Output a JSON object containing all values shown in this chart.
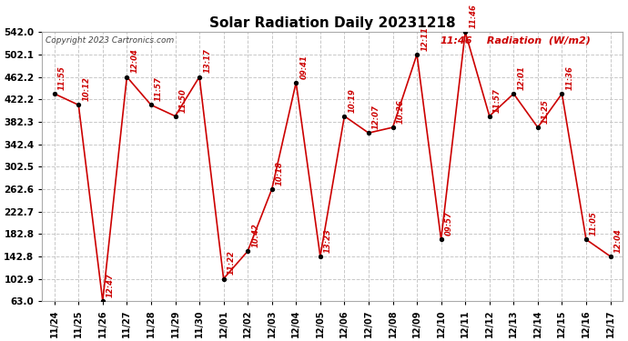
{
  "title": "Solar Radiation Daily 20231218",
  "copyright": "Copyright 2023 Cartronics.com",
  "legend_time": "11:46",
  "legend_text": " Radiation  (W/m2)",
  "background_color": "#ffffff",
  "grid_color": "#c8c8c8",
  "line_color": "#cc0000",
  "marker_color": "#000000",
  "label_color": "#cc0000",
  "yticks": [
    63.0,
    102.9,
    142.8,
    182.8,
    222.7,
    262.6,
    302.5,
    342.4,
    382.3,
    422.2,
    462.2,
    502.1,
    542.0
  ],
  "dates": [
    "11/24",
    "11/25",
    "11/26",
    "11/27",
    "11/28",
    "11/29",
    "11/30",
    "12/01",
    "12/02",
    "12/03",
    "12/04",
    "12/05",
    "12/06",
    "12/07",
    "12/08",
    "12/09",
    "12/10",
    "12/11",
    "12/12",
    "12/13",
    "12/14",
    "12/15",
    "12/16",
    "12/17"
  ],
  "values": [
    432.2,
    412.2,
    63.0,
    462.2,
    412.2,
    392.3,
    462.2,
    102.9,
    152.0,
    262.6,
    452.2,
    142.8,
    392.3,
    362.4,
    372.3,
    502.1,
    172.8,
    542.0,
    392.3,
    432.2,
    372.3,
    432.2,
    172.8,
    142.8
  ],
  "point_labels": [
    "11:55",
    "10:12",
    "12:47",
    "12:04",
    "11:57",
    "11:50",
    "13:17",
    "11:22",
    "10:42",
    "10:18",
    "09:41",
    "13:23",
    "10:19",
    "12:07",
    "10:26",
    "12:11",
    "09:57",
    "11:46",
    "11:57",
    "12:01",
    "11:25",
    "11:36",
    "11:05",
    "12:04"
  ],
  "ylim": [
    63.0,
    542.0
  ],
  "xlim": [
    -0.5,
    23.5
  ]
}
